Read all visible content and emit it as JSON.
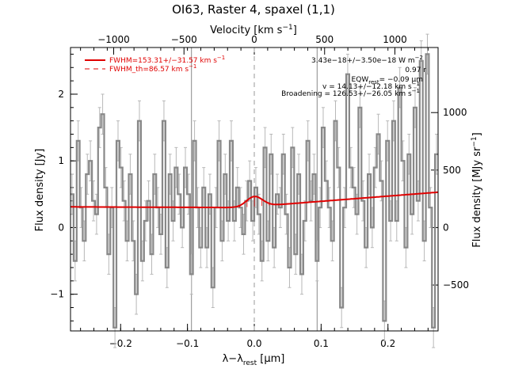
{
  "chart_data": {
    "type": "line",
    "title": "OI63, Raster 4, spaxel (1,1)",
    "xlabel": "λ−λ",
    "xlabel_sub": "rest",
    "xlabel_unit": " [μm]",
    "ylabel": "Flux density [Jy]",
    "top_xlabel": "Velocity [km s",
    "top_xlabel_sup": "−1",
    "top_xlabel_end": "]",
    "right_ylabel": "Flux density [MJy sr",
    "right_ylabel_sup": "−1",
    "right_ylabel_end": "]",
    "xlim": [
      -0.275,
      0.275
    ],
    "ylim": [
      -1.55,
      2.7
    ],
    "x_ticks": [
      -0.2,
      -0.1,
      0.0,
      0.1,
      0.2
    ],
    "x_tick_labels": [
      "−0.2",
      "−0.1",
      "0.0",
      "0.1",
      "0.2"
    ],
    "y_ticks": [
      -1,
      0,
      1,
      2
    ],
    "y_tick_labels": [
      "−1",
      "0",
      "1",
      "2"
    ],
    "top_ticks_velocity": [
      -1000,
      -500,
      0,
      500,
      1000
    ],
    "top_tick_labels": [
      "−1000",
      "−500",
      "0",
      "500",
      "1000"
    ],
    "velocity_per_um": 4753,
    "right_ticks_mjy": [
      -500,
      0,
      500,
      1000
    ],
    "right_tick_labels": [
      "−500",
      "0",
      "500",
      "1000"
    ],
    "mjy_per_jy": 580,
    "vertical_lines_um": [
      -0.094,
      0.094
    ],
    "dashed_line_um": 0.0,
    "legend": [
      {
        "style": "solid",
        "color": "#e00000",
        "label": "FWHM=153.31+/−31.57 km s",
        "sup": "−1"
      },
      {
        "style": "dashed",
        "color": "#e00000",
        "label": "FWHM_th=86.57 km s",
        "sup": "−1"
      }
    ],
    "annotations": [
      "3.43e−18+/−3.50e−18 W m",
      "0.97 r",
      "EQW",
      "= −0.09 μm",
      "v = 14.13+/−12.18 km s",
      "Broadening = 126.53+/−26.05 km s"
    ],
    "annotation_sups": {
      "flux": "−2",
      "v": "−1",
      "broad": "−1",
      "eqw_sub": "rest"
    },
    "series": [
      {
        "name": "spectrum",
        "color": "#888888",
        "style": "steps",
        "x": [
          -0.275,
          -0.2704,
          -0.2658,
          -0.2613,
          -0.2567,
          -0.2521,
          -0.2475,
          -0.2429,
          -0.2383,
          -0.2338,
          -0.2292,
          -0.2246,
          -0.22,
          -0.2154,
          -0.2108,
          -0.2062,
          -0.2017,
          -0.1971,
          -0.1925,
          -0.1879,
          -0.1833,
          -0.1788,
          -0.1742,
          -0.1696,
          -0.165,
          -0.1604,
          -0.1558,
          -0.1513,
          -0.1467,
          -0.1421,
          -0.1375,
          -0.1329,
          -0.1283,
          -0.1238,
          -0.1192,
          -0.1146,
          -0.11,
          -0.1054,
          -0.1008,
          -0.0963,
          -0.0917,
          -0.0871,
          -0.0825,
          -0.0779,
          -0.0733,
          -0.0688,
          -0.0642,
          -0.0596,
          -0.055,
          -0.0504,
          -0.0458,
          -0.0413,
          -0.0367,
          -0.0321,
          -0.0275,
          -0.0229,
          -0.0183,
          -0.0138,
          -0.0092,
          -0.0046,
          0.0,
          0.0046,
          0.0092,
          0.0138,
          0.0183,
          0.0229,
          0.0275,
          0.0321,
          0.0367,
          0.0413,
          0.0458,
          0.0504,
          0.055,
          0.0596,
          0.0642,
          0.0688,
          0.0733,
          0.0779,
          0.0825,
          0.0871,
          0.0917,
          0.0963,
          0.1008,
          0.1054,
          0.11,
          0.1146,
          0.1192,
          0.1238,
          0.1283,
          0.1329,
          0.1375,
          0.1421,
          0.1467,
          0.1513,
          0.1558,
          0.1604,
          0.165,
          0.1696,
          0.1742,
          0.1788,
          0.1833,
          0.1879,
          0.1925,
          0.1971,
          0.2017,
          0.2062,
          0.2108,
          0.2154,
          0.22,
          0.2246,
          0.2292,
          0.2338,
          0.2383,
          0.2429,
          0.2475,
          0.2521,
          0.2567,
          0.2613,
          0.2658,
          0.2704
        ],
        "y": [
          0.5,
          -0.5,
          1.3,
          0.3,
          -0.2,
          0.8,
          1.0,
          0.4,
          0.2,
          1.5,
          1.7,
          0.6,
          -0.4,
          0.3,
          -1.5,
          1.3,
          0.9,
          0.4,
          -0.2,
          0.8,
          -0.2,
          -1.0,
          1.6,
          -0.5,
          0.1,
          0.4,
          -0.4,
          0.8,
          0.3,
          -0.1,
          1.6,
          -0.6,
          0.8,
          0.1,
          0.9,
          0.5,
          0.0,
          0.9,
          0.5,
          -0.7,
          1.3,
          0.3,
          -0.3,
          0.6,
          -0.3,
          0.5,
          -0.9,
          0.3,
          1.3,
          -0.2,
          0.8,
          0.1,
          1.3,
          0.1,
          0.6,
          0.3,
          -0.1,
          0.4,
          0.7,
          0.1,
          0.6,
          0.2,
          -0.5,
          1.2,
          -0.2,
          1.1,
          -0.3,
          0.5,
          0.3,
          1.1,
          0.2,
          -0.6,
          1.2,
          -0.4,
          0.8,
          -0.7,
          0.1,
          1.3,
          0.4,
          0.8,
          -0.5,
          0.3,
          1.5,
          0.7,
          0.3,
          -0.2,
          1.6,
          0.9,
          -1.2,
          0.3,
          2.3,
          0.9,
          0.6,
          0.2,
          1.8,
          0.4,
          -0.3,
          0.8,
          0.0,
          0.9,
          1.4,
          0.7,
          -1.4,
          1.3,
          0.1,
          1.6,
          0.1,
          2.1,
          1.0,
          -0.3,
          1.1,
          0.2,
          1.8,
          0.4,
          2.5,
          -0.2,
          2.6,
          0.3,
          -1.5,
          1.1
        ]
      },
      {
        "name": "fit",
        "color": "#e00000",
        "style": "line",
        "baseline": {
          "x0": -0.275,
          "y0": 0.31,
          "x1": -0.02,
          "y1": 0.3,
          "x2": 0.275,
          "y2": 0.53
        },
        "gaussian": {
          "center": 0.0002,
          "amplitude": 0.15,
          "sigma": 0.0122
        }
      }
    ]
  }
}
